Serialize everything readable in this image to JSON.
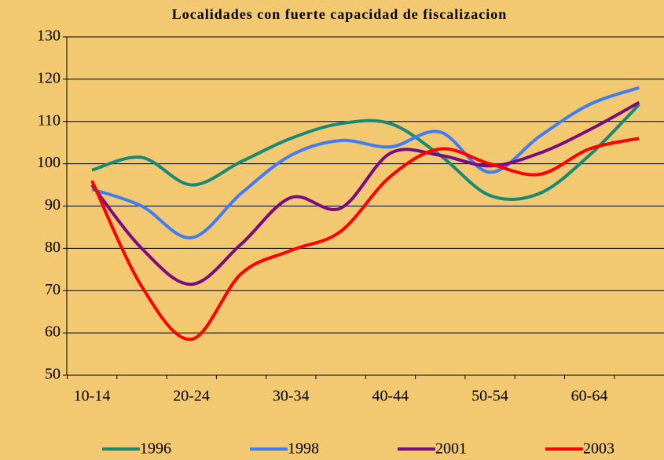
{
  "chart_data": {
    "type": "line",
    "title": "Localidades con fuerte capacidad de fiscalizacion",
    "categories": [
      "10-14",
      null,
      "20-24",
      null,
      "30-34",
      null,
      "40-44",
      null,
      "50-54",
      null,
      "60-64",
      null
    ],
    "ylim": [
      50,
      130
    ],
    "yticks": [
      50,
      60,
      70,
      80,
      90,
      100,
      110,
      120,
      130
    ],
    "grid": true,
    "legend": "bottom",
    "series": [
      {
        "name": "1996",
        "color": "#168a74",
        "values": [
          98.5,
          101.5,
          95,
          100.5,
          106,
          109.5,
          109.5,
          102,
          92.5,
          93,
          102,
          114
        ]
      },
      {
        "name": "1998",
        "color": "#3f7cf6",
        "values": [
          94,
          90,
          82.5,
          93,
          102,
          105.5,
          104,
          107.5,
          98,
          106.5,
          114,
          118
        ]
      },
      {
        "name": "2001",
        "color": "#7a0c82",
        "values": [
          95,
          80,
          71.5,
          81,
          92,
          89.5,
          102.5,
          102,
          99.5,
          102.5,
          108,
          114.5
        ]
      },
      {
        "name": "2003",
        "color": "#ff0000",
        "values": [
          96,
          71,
          58.5,
          74,
          79.5,
          84,
          97,
          103.5,
          100,
          97.5,
          103.5,
          106
        ]
      }
    ]
  }
}
